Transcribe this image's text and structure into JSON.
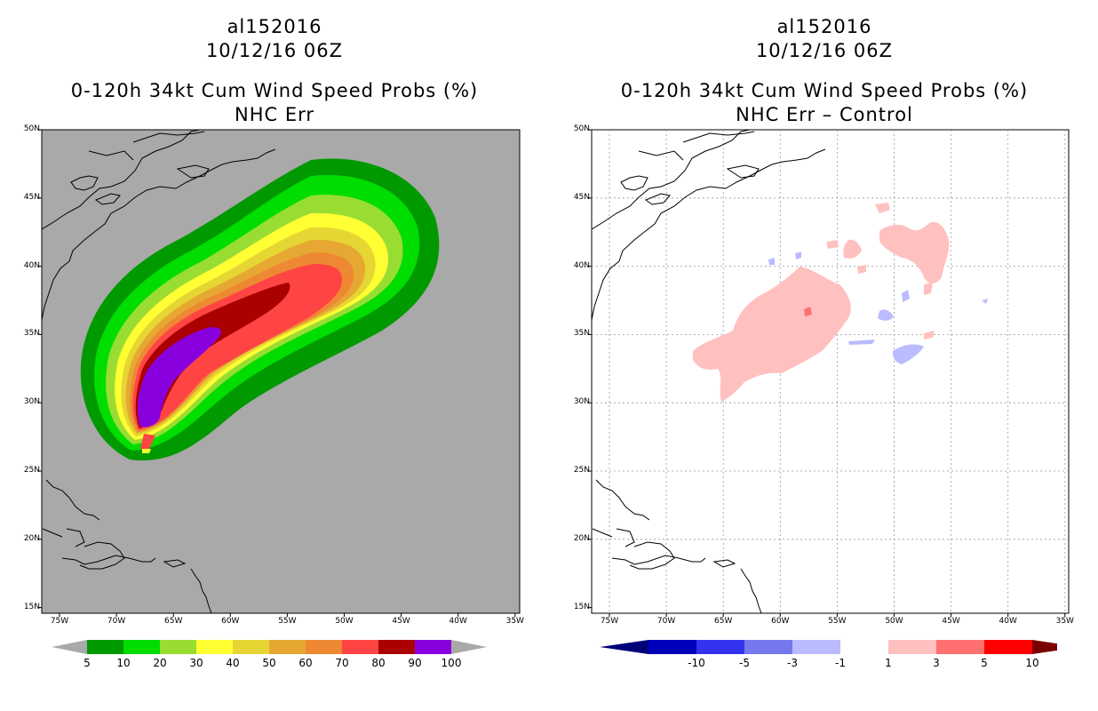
{
  "left": {
    "storm_id": "al152016",
    "datetime": "10/12/16 06Z",
    "product": "0-120h 34kt Cum Wind Speed Probs (%)",
    "subtitle": "NHC Err",
    "background": "#a9a9a9",
    "lat_labels": [
      "50N",
      "45N",
      "40N",
      "35N",
      "30N",
      "25N",
      "20N",
      "15N"
    ],
    "lon_labels": [
      "75W",
      "70W",
      "65W",
      "60W",
      "55W",
      "50W",
      "45W",
      "40W",
      "35W"
    ],
    "colorbar": {
      "colors": [
        "#009900",
        "#00dd00",
        "#99dd33",
        "#ffff33",
        "#e6d633",
        "#e6a833",
        "#ee8833",
        "#ff4444",
        "#aa0000",
        "#8800dd"
      ],
      "labels": [
        "5",
        "10",
        "20",
        "30",
        "40",
        "50",
        "60",
        "70",
        "80",
        "90",
        "100"
      ]
    }
  },
  "right": {
    "storm_id": "al152016",
    "datetime": "10/12/16 06Z",
    "product": "0-120h 34kt Cum Wind Speed Probs (%)",
    "subtitle": "NHC Err – Control",
    "background": "#ffffff",
    "lat_labels": [
      "50N",
      "45N",
      "40N",
      "35N",
      "30N",
      "25N",
      "20N",
      "15N"
    ],
    "lon_labels": [
      "75W",
      "70W",
      "65W",
      "60W",
      "55W",
      "50W",
      "45W",
      "40W",
      "35W"
    ],
    "colorbar": {
      "colors": [
        "#0000bb",
        "#3333ee",
        "#7777ee",
        "#bbbbff",
        "#ffffff",
        "#ffc0c0",
        "#ff7070",
        "#ff0000"
      ],
      "labels": [
        "-10",
        "-5",
        "-3",
        "-1",
        "1",
        "3",
        "5",
        "10"
      ]
    }
  }
}
